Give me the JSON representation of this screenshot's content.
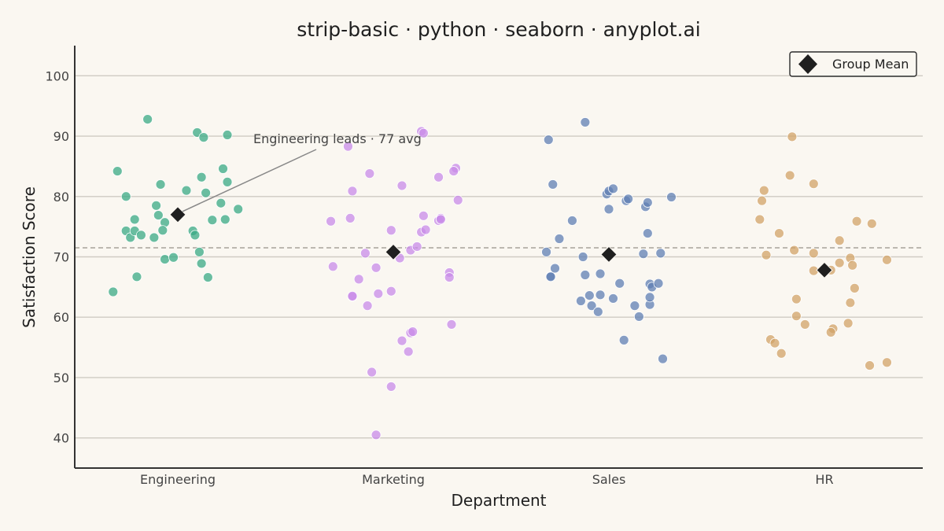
{
  "chart_data": {
    "type": "scatter",
    "title": "strip-basic · python · seaborn · anyplot.ai",
    "xlabel": "Department",
    "ylabel": "Satisfaction Score",
    "categories": [
      "Engineering",
      "Marketing",
      "Sales",
      "HR"
    ],
    "ylim": [
      35,
      105
    ],
    "yticks": [
      40,
      50,
      60,
      70,
      80,
      90,
      100
    ],
    "grid": "horizontal",
    "overall_mean": 71.5,
    "legend": {
      "label": "Group Mean",
      "position": "top-right"
    },
    "annotation": {
      "text": "Engineering leads · 77 avg",
      "category": "Engineering",
      "y": 77
    },
    "series": [
      {
        "category": "Engineering",
        "color": "#3aaa84",
        "mean": 77,
        "jitter": [
          -0.3,
          -0.24,
          -0.28,
          -0.24,
          -0.22,
          -0.2,
          -0.17,
          -0.19,
          -0.2,
          -0.14,
          -0.11,
          -0.1,
          -0.08,
          -0.09,
          -0.06,
          -0.06,
          -0.07,
          -0.02,
          0.04,
          0.07,
          0.08,
          0.09,
          0.1,
          0.11,
          0.13,
          0.12,
          0.11,
          0.14,
          0.16,
          0.2,
          0.21,
          0.23,
          0.23,
          0.22,
          0.28
        ],
        "values": [
          64.2,
          74.3,
          84.2,
          80,
          73.2,
          74.3,
          73.6,
          66.7,
          76.2,
          92.8,
          73.2,
          78.5,
          82,
          76.9,
          75.7,
          69.6,
          74.4,
          69.9,
          81,
          74.3,
          73.6,
          90.6,
          70.8,
          68.9,
          80.6,
          89.8,
          83.2,
          66.6,
          76.1,
          78.9,
          84.6,
          82.4,
          90.2,
          76.2,
          77.9
        ]
      },
      {
        "category": "Marketing",
        "color": "#c88be8",
        "mean": 70.8,
        "jitter": [
          -0.29,
          -0.28,
          -0.2,
          -0.21,
          -0.19,
          -0.16,
          -0.19,
          -0.19,
          -0.13,
          -0.12,
          -0.11,
          -0.1,
          -0.08,
          -0.08,
          -0.07,
          -0.01,
          -0.01,
          -0.01,
          0.03,
          0.04,
          0.04,
          0.08,
          0.08,
          0.07,
          0.09,
          0.11,
          0.13,
          0.13,
          0.14,
          0.15,
          0.14,
          0.21,
          0.21,
          0.22,
          0.22,
          0.26,
          0.26,
          0.27,
          0.29,
          0.28,
          0.3
        ],
        "values": [
          75.9,
          68.4,
          76.4,
          88.3,
          80.9,
          66.3,
          63.4,
          63.5,
          70.6,
          61.9,
          83.8,
          50.9,
          68.2,
          40.5,
          63.9,
          74.4,
          48.5,
          64.3,
          69.8,
          81.8,
          56.1,
          71.1,
          57.4,
          54.3,
          57.6,
          71.7,
          74.1,
          90.8,
          90.5,
          74.5,
          76.8,
          83.2,
          76.0,
          76.4,
          76.2,
          67.4,
          66.6,
          58.8,
          84.7,
          84.2,
          79.4
        ]
      },
      {
        "category": "Sales",
        "color": "#5f7fb3",
        "mean": 70.4,
        "jitter": [
          -0.28,
          -0.27,
          -0.29,
          -0.27,
          -0.26,
          -0.25,
          -0.23,
          -0.17,
          -0.13,
          -0.12,
          -0.11,
          -0.09,
          -0.08,
          -0.11,
          -0.05,
          -0.04,
          -0.04,
          -0.01,
          0.0,
          0.02,
          0.0,
          0.02,
          0.05,
          0.07,
          0.08,
          0.09,
          0.12,
          0.14,
          0.16,
          0.17,
          0.18,
          0.18,
          0.19,
          0.19,
          0.19,
          0.2,
          0.23,
          0.24,
          0.25,
          0.29
        ],
        "values": [
          89.4,
          66.8,
          70.8,
          66.7,
          82.0,
          68.1,
          73.0,
          76.0,
          62.7,
          70.0,
          67.0,
          63.6,
          61.9,
          92.3,
          60.9,
          67.2,
          63.7,
          80.4,
          80.9,
          63.1,
          77.9,
          81.3,
          65.6,
          56.2,
          79.3,
          79.6,
          61.9,
          60.1,
          70.5,
          78.3,
          79.0,
          73.9,
          62.1,
          63.3,
          65.5,
          65.0,
          65.6,
          70.6,
          53.1,
          79.9
        ]
      },
      {
        "category": "HR",
        "color": "#d1a367",
        "mean": 67.8,
        "jitter": [
          -0.3,
          -0.29,
          -0.28,
          -0.27,
          -0.25,
          -0.23,
          -0.21,
          -0.2,
          -0.15,
          -0.16,
          -0.14,
          -0.13,
          -0.13,
          -0.09,
          -0.05,
          -0.05,
          -0.05,
          0.03,
          0.04,
          0.03,
          0.07,
          0.07,
          0.11,
          0.12,
          0.12,
          0.13,
          0.14,
          0.15,
          0.21,
          0.22,
          0.29,
          0.29
        ],
        "values": [
          76.2,
          79.3,
          81.0,
          70.3,
          56.3,
          55.7,
          73.9,
          54.0,
          89.9,
          83.5,
          71.1,
          63.0,
          60.2,
          58.8,
          82.1,
          67.7,
          70.6,
          67.8,
          58.1,
          57.5,
          72.7,
          69.0,
          59.0,
          69.8,
          62.4,
          68.6,
          64.8,
          75.9,
          52.0,
          75.5,
          52.5,
          69.5
        ]
      }
    ]
  }
}
